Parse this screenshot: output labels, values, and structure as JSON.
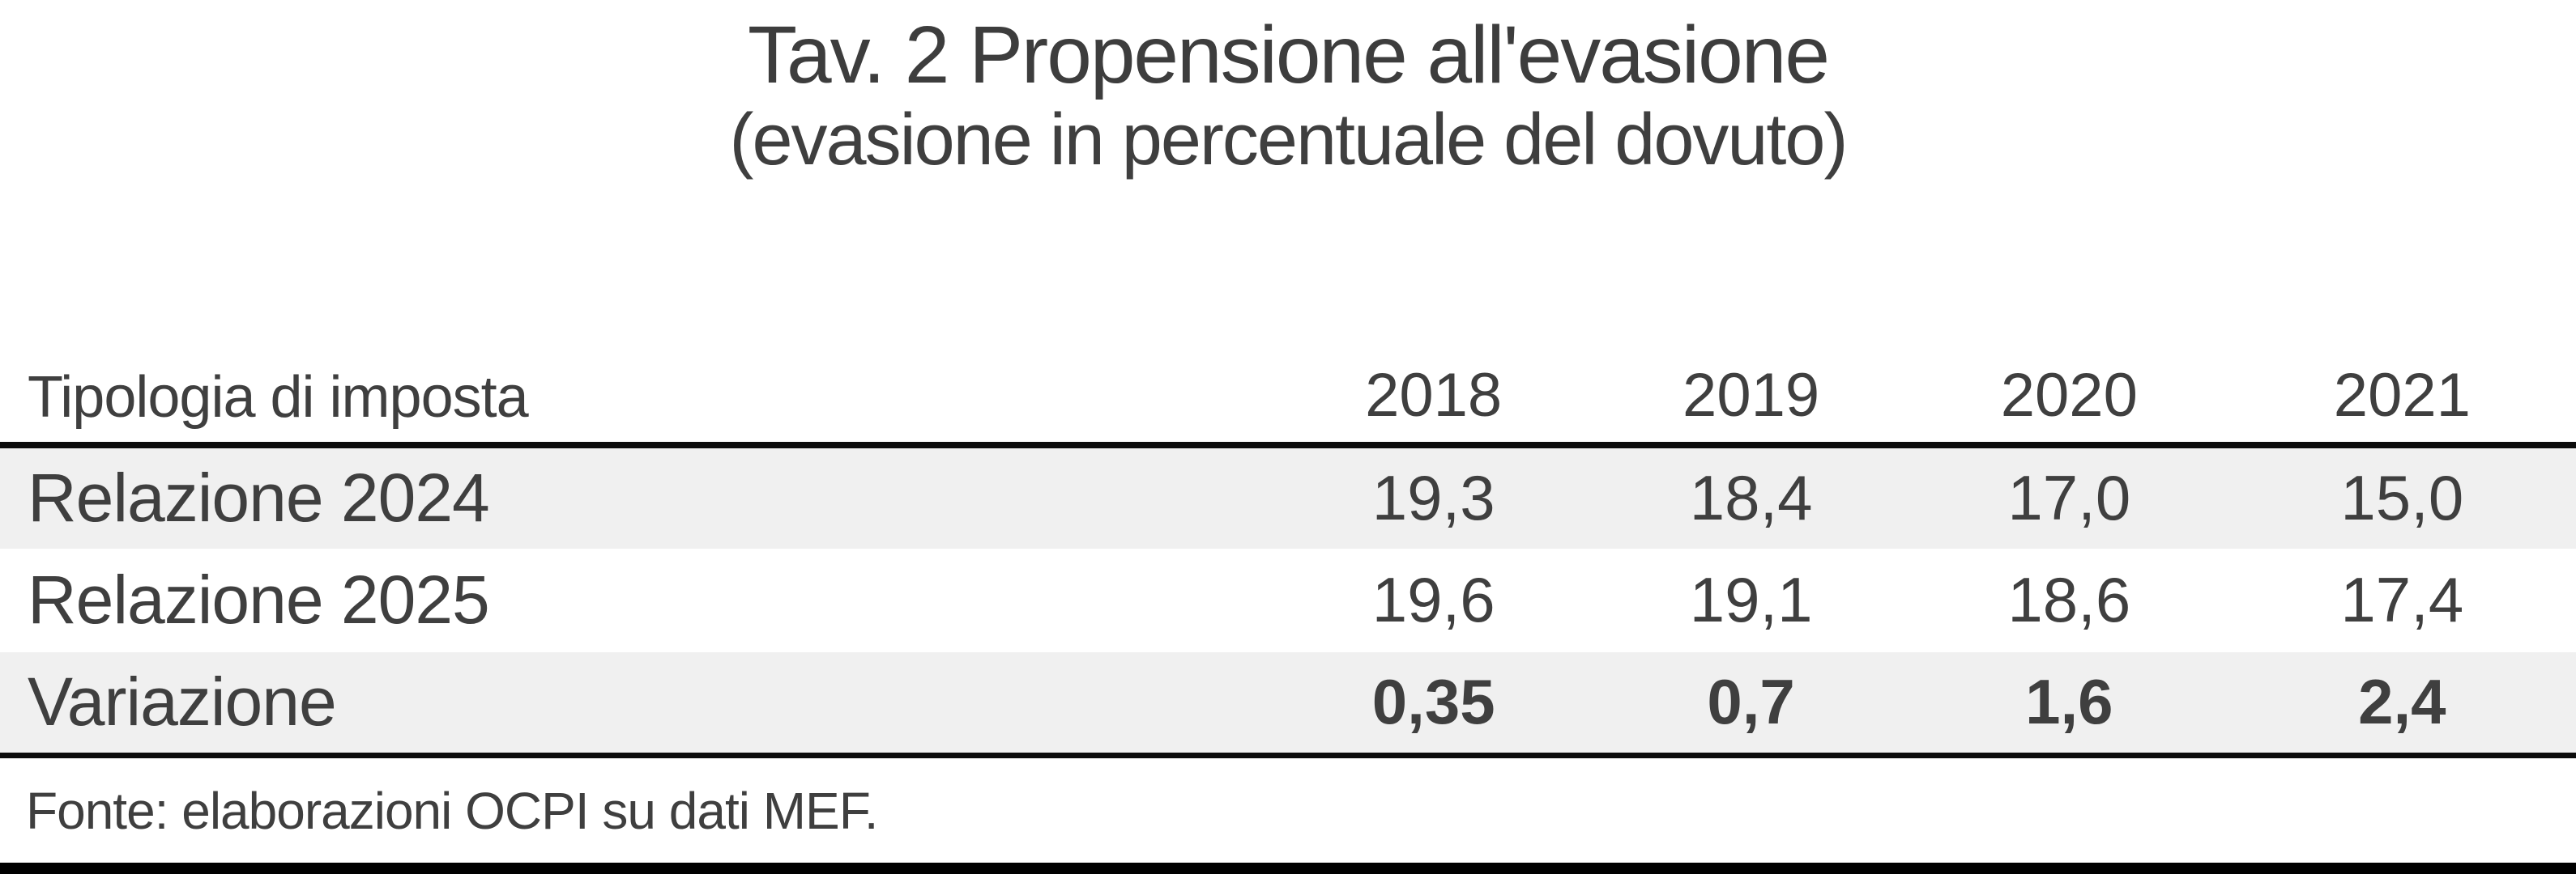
{
  "title": "Tav. 2 Propensione all'evasione",
  "subtitle": "(evasione in percentuale del dovuto)",
  "table": {
    "header": {
      "label": "Tipologia di imposta",
      "years": [
        "2018",
        "2019",
        "2020",
        "2021"
      ]
    },
    "rows": [
      {
        "label": "Relazione 2024",
        "values": [
          "19,3",
          "18,4",
          "17,0",
          "15,0"
        ]
      },
      {
        "label": "Relazione 2025",
        "values": [
          "19,6",
          "19,1",
          "18,6",
          "17,4"
        ]
      },
      {
        "label": "Variazione",
        "values": [
          "0,35",
          "0,7",
          "1,6",
          "2,4"
        ]
      }
    ],
    "source": "Fonte: elaborazioni OCPI su dati MEF."
  },
  "colors": {
    "text": "#3f3f3f",
    "row_shade": "#f0f0f0",
    "rule": "#0c0c0c",
    "bottom_bar": "#000000",
    "background": "#ffffff"
  },
  "chart_data": {
    "type": "table",
    "title": "Tav. 2 Propensione all'evasione",
    "subtitle": "(evasione in percentuale del dovuto)",
    "columns": [
      "Tipologia di imposta",
      "2018",
      "2019",
      "2020",
      "2021"
    ],
    "rows": [
      [
        "Relazione 2024",
        19.3,
        18.4,
        17.0,
        15.0
      ],
      [
        "Relazione 2025",
        19.6,
        19.1,
        18.6,
        17.4
      ],
      [
        "Variazione",
        0.35,
        0.7,
        1.6,
        2.4
      ]
    ],
    "source": "Fonte: elaborazioni OCPI su dati MEF.",
    "notes": "values are evasion as percentage of amount due; Italian decimal comma formatting; Variazione row values rendered bold; rows 1 and 3 shaded light gray"
  }
}
